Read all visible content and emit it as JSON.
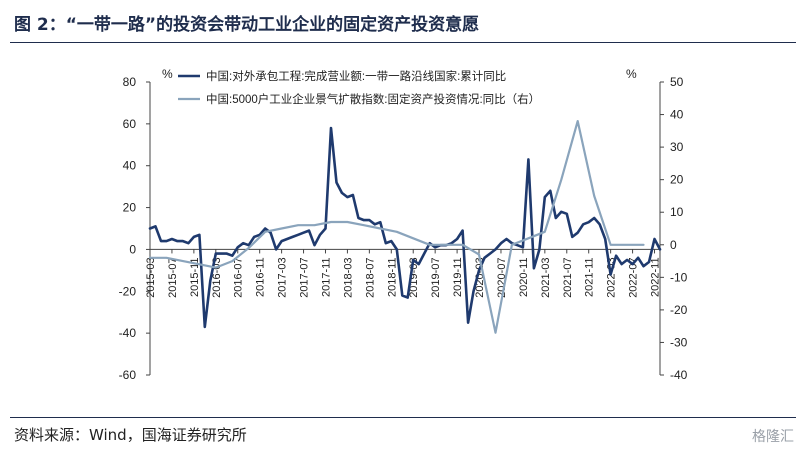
{
  "title": "图 2：“一带一路”的投资会带动工业企业的固定资产投资意愿",
  "source": "资料来源：Wind，国海证券研究所",
  "watermark": "格隆汇",
  "chart_data": {
    "type": "line",
    "left_unit": "%",
    "right_unit": "%",
    "left_axis": {
      "min": -60,
      "max": 80,
      "ticks": [
        "80",
        "60",
        "40",
        "20",
        "0",
        "-20",
        "-40",
        "-60"
      ]
    },
    "right_axis": {
      "min": -40,
      "max": 50,
      "ticks": [
        "50",
        "40",
        "30",
        "20",
        "10",
        "0",
        "-10",
        "-20",
        "-30",
        "-40"
      ]
    },
    "x_ticks": [
      "2015-03",
      "2015-07",
      "2015-11",
      "2016-03",
      "2016-07",
      "2016-11",
      "2017-03",
      "2017-07",
      "2017-11",
      "2018-03",
      "2018-07",
      "2018-11",
      "2019-03",
      "2019-07",
      "2019-11",
      "2020-03",
      "2020-07",
      "2020-11",
      "2021-03",
      "2021-07",
      "2021-11",
      "2022-03",
      "2022-07",
      "2022-11"
    ],
    "series": [
      {
        "name": "中国:对外承包工程:完成营业额:一带一路沿线国家:累计同比",
        "axis": "left",
        "color": "#1f3a6e",
        "x": [
          "2015-03",
          "2015-04",
          "2015-05",
          "2015-06",
          "2015-07",
          "2015-08",
          "2015-09",
          "2015-10",
          "2015-11",
          "2015-12",
          "2016-01",
          "2016-02",
          "2016-03",
          "2016-04",
          "2016-05",
          "2016-06",
          "2016-07",
          "2016-08",
          "2016-09",
          "2016-10",
          "2016-11",
          "2016-12",
          "2017-01",
          "2017-02",
          "2017-03",
          "2017-04",
          "2017-05",
          "2017-06",
          "2017-07",
          "2017-08",
          "2017-09",
          "2017-10",
          "2017-11",
          "2017-12",
          "2018-01",
          "2018-02",
          "2018-03",
          "2018-04",
          "2018-05",
          "2018-06",
          "2018-07",
          "2018-08",
          "2018-09",
          "2018-10",
          "2018-11",
          "2018-12",
          "2019-01",
          "2019-02",
          "2019-03",
          "2019-04",
          "2019-05",
          "2019-06",
          "2019-07",
          "2019-08",
          "2019-09",
          "2019-10",
          "2019-11",
          "2019-12",
          "2020-01",
          "2020-02",
          "2020-03",
          "2020-04",
          "2020-05",
          "2020-06",
          "2020-07",
          "2020-08",
          "2020-09",
          "2020-10",
          "2020-11",
          "2020-12",
          "2021-01",
          "2021-02",
          "2021-03",
          "2021-04",
          "2021-05",
          "2021-06",
          "2021-07",
          "2021-08",
          "2021-09",
          "2021-10",
          "2021-11",
          "2021-12",
          "2022-01",
          "2022-02",
          "2022-03",
          "2022-04",
          "2022-05",
          "2022-06",
          "2022-07",
          "2022-08",
          "2022-09",
          "2022-10",
          "2022-11",
          "2022-12"
        ],
        "values": [
          10,
          11,
          4,
          4,
          5,
          4,
          4,
          3,
          6,
          7,
          -37,
          -15,
          -2,
          -2,
          -2,
          -3,
          1,
          3,
          2,
          6,
          7,
          10,
          8,
          0,
          4,
          5,
          6,
          7,
          8,
          9,
          2,
          7,
          10,
          58,
          32,
          27,
          25,
          26,
          15,
          14,
          14,
          12,
          13,
          3,
          4,
          0,
          -22,
          -23,
          -5,
          -7,
          -2,
          3,
          1,
          2,
          2,
          3,
          5,
          9,
          -35,
          -20,
          -10,
          -4,
          -2,
          0,
          3,
          5,
          3,
          2,
          1,
          43,
          -9,
          0,
          25,
          28,
          15,
          18,
          17,
          6,
          8,
          12,
          13,
          15,
          12,
          5,
          -12,
          -3,
          -7,
          -5,
          -7,
          -4,
          -8,
          -6,
          5,
          0
        ]
      },
      {
        "name": "中国:5000户工业企业景气扩散指数:固定资产投资情况:同比（右）",
        "axis": "right",
        "color": "#8aa4bc",
        "x": [
          "2015-03",
          "2015-06",
          "2015-09",
          "2015-12",
          "2016-03",
          "2016-06",
          "2016-09",
          "2016-12",
          "2017-03",
          "2017-06",
          "2017-09",
          "2017-12",
          "2018-03",
          "2018-06",
          "2018-09",
          "2018-12",
          "2019-03",
          "2019-06",
          "2019-09",
          "2019-12",
          "2020-03",
          "2020-06",
          "2020-09",
          "2020-12",
          "2021-03",
          "2021-06",
          "2021-09",
          "2021-12",
          "2022-03",
          "2022-06",
          "2022-09"
        ],
        "values": [
          -4,
          -4,
          -5,
          -6,
          -7,
          -5,
          -1,
          4,
          5,
          6,
          6,
          7,
          7,
          6,
          5,
          4,
          2,
          0,
          0,
          0,
          -3,
          -27,
          0,
          2,
          4,
          20,
          38,
          15,
          0,
          0,
          0
        ]
      }
    ]
  }
}
